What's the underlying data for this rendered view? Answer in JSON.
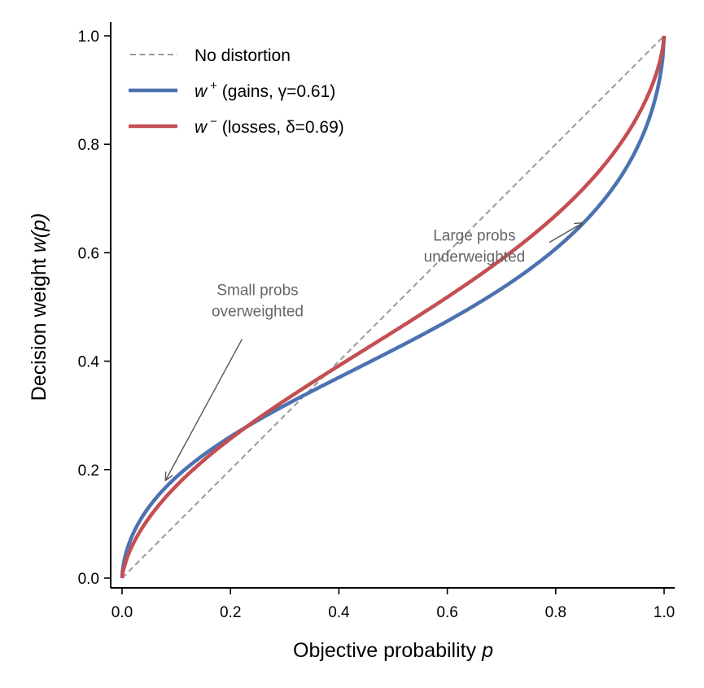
{
  "chart_data": {
    "type": "line",
    "title": "",
    "xlabel": "Objective probability",
    "xlabel_var": "p",
    "ylabel": "Decision weight",
    "ylabel_var": "w(p)",
    "xlim": [
      0.0,
      1.0
    ],
    "ylim": [
      0.0,
      1.0
    ],
    "x_ticks": [
      "0.0",
      "0.2",
      "0.4",
      "0.6",
      "0.8",
      "1.0"
    ],
    "y_ticks": [
      "0.0",
      "0.2",
      "0.4",
      "0.6",
      "0.8",
      "1.0"
    ],
    "grid": false,
    "legend_position": "top-left",
    "series": [
      {
        "name": "No distortion",
        "legend_label": "No distortion",
        "style": "dashed",
        "color": "#999999",
        "function": "identity",
        "x": [
          0.0,
          1.0
        ],
        "y": [
          0.0,
          1.0
        ]
      },
      {
        "name": "w+ (gains, γ=0.61)",
        "legend_var": "w",
        "legend_sup": "+",
        "legend_rest": " (gains, γ=0.61)",
        "style": "solid",
        "color": "#4c72b0",
        "function": "tversky-kahneman",
        "param": 0.61,
        "x": [
          0.0,
          0.05,
          0.1,
          0.2,
          0.3,
          0.4,
          0.5,
          0.6,
          0.7,
          0.8,
          0.9,
          0.95,
          1.0
        ],
        "y": [
          0.0,
          0.132,
          0.186,
          0.261,
          0.321,
          0.372,
          0.421,
          0.47,
          0.533,
          0.607,
          0.712,
          0.793,
          1.0
        ]
      },
      {
        "name": "w- (losses, δ=0.69)",
        "legend_var": "w",
        "legend_sup": "−",
        "legend_rest": " (losses, δ=0.69)",
        "style": "solid",
        "color": "#c44e52",
        "function": "tversky-kahneman",
        "param": 0.69,
        "x": [
          0.0,
          0.05,
          0.1,
          0.2,
          0.3,
          0.4,
          0.5,
          0.6,
          0.7,
          0.8,
          0.9,
          0.95,
          1.0
        ],
        "y": [
          0.0,
          0.113,
          0.167,
          0.249,
          0.318,
          0.38,
          0.44,
          0.503,
          0.574,
          0.657,
          0.765,
          0.839,
          1.0
        ]
      }
    ],
    "annotations": [
      {
        "lines": [
          "Small probs",
          "overweighted"
        ],
        "arrow_to": [
          0.08,
          0.18
        ],
        "text_at": [
          0.25,
          0.48
        ]
      },
      {
        "lines": [
          "Large probs",
          "underweighted"
        ],
        "arrow_to": [
          0.85,
          0.655
        ],
        "text_at": [
          0.65,
          0.58
        ]
      }
    ]
  }
}
